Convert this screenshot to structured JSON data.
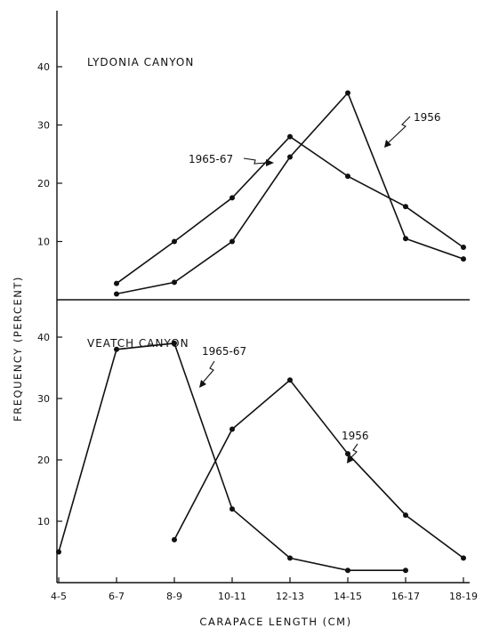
{
  "chart_data": {
    "type": "line",
    "xlabel": "CARAPACE LENGTH (CM)",
    "ylabel": "FREQUENCY (PERCENT)",
    "categories": [
      "4-5",
      "6-7",
      "8-9",
      "10-11",
      "12-13",
      "14-15",
      "16-17",
      "18-19"
    ],
    "grid": false,
    "panels": [
      {
        "title": "LYDONIA CANYON",
        "ylim": [
          0,
          50
        ],
        "yticks": [
          10,
          20,
          30,
          40
        ],
        "series": [
          {
            "name": "1956",
            "values": [
              null,
              1,
              3,
              10,
              24.5,
              35.5,
              10.5,
              7
            ]
          },
          {
            "name": "1965-67",
            "values": [
              null,
              2.8,
              10,
              17.5,
              28,
              21.2,
              16,
              9
            ]
          }
        ]
      },
      {
        "title": "VEATCH CANYON",
        "ylim": [
          0,
          50
        ],
        "yticks": [
          10,
          20,
          30,
          40
        ],
        "series": [
          {
            "name": "1965-67",
            "values": [
              5,
              38,
              39,
              12,
              4,
              2,
              2,
              null
            ]
          },
          {
            "name": "1956",
            "values": [
              null,
              null,
              7,
              25,
              33,
              21,
              11,
              4
            ]
          }
        ]
      }
    ]
  }
}
